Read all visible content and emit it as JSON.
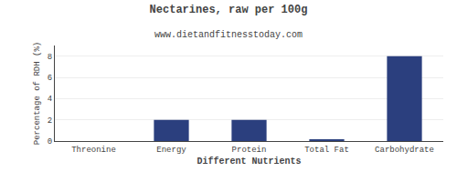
{
  "chart_data": {
    "type": "bar",
    "title": "Nectarines, raw per 100g",
    "subtitle": "www.dietandfitnesstoday.com",
    "xlabel": "Different Nutrients",
    "ylabel": "Percentage of RDH (%)",
    "categories": [
      "Threonine",
      "Energy",
      "Protein",
      "Total Fat",
      "Carbohydrate"
    ],
    "values": [
      0.0,
      2.0,
      2.0,
      0.1,
      8.0
    ],
    "color": "#2b3f7e",
    "ylim": [
      0,
      9
    ],
    "yticks": [
      0,
      2,
      4,
      6,
      8
    ],
    "grid": true
  }
}
